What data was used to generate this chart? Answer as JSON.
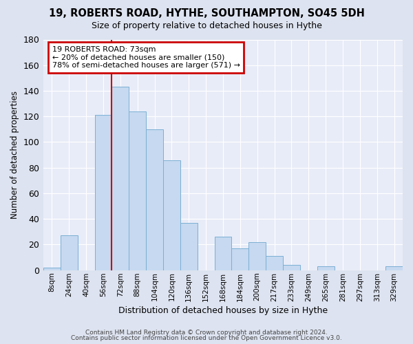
{
  "title": "19, ROBERTS ROAD, HYTHE, SOUTHAMPTON, SO45 5DH",
  "subtitle": "Size of property relative to detached houses in Hythe",
  "xlabel": "Distribution of detached houses by size in Hythe",
  "ylabel": "Number of detached properties",
  "bar_labels": [
    "8sqm",
    "24sqm",
    "40sqm",
    "56sqm",
    "72sqm",
    "88sqm",
    "104sqm",
    "120sqm",
    "136sqm",
    "152sqm",
    "168sqm",
    "184sqm",
    "200sqm",
    "217sqm",
    "233sqm",
    "249sqm",
    "265sqm",
    "281sqm",
    "297sqm",
    "313sqm",
    "329sqm"
  ],
  "bar_values": [
    2,
    27,
    0,
    121,
    143,
    124,
    110,
    86,
    37,
    0,
    26,
    17,
    22,
    11,
    4,
    0,
    3,
    0,
    0,
    0,
    3
  ],
  "bar_color": "#c6d9f0",
  "bar_edge_color": "#7bafd4",
  "highlight_bar_index": 4,
  "vline_color": "#cc0000",
  "annotation_title": "19 ROBERTS ROAD: 73sqm",
  "annotation_line1": "← 20% of detached houses are smaller (150)",
  "annotation_line2": "78% of semi-detached houses are larger (571) →",
  "annotation_box_facecolor": "#ffffff",
  "annotation_box_edgecolor": "#cc0000",
  "ylim": [
    0,
    180
  ],
  "yticks": [
    0,
    20,
    40,
    60,
    80,
    100,
    120,
    140,
    160,
    180
  ],
  "footer1": "Contains HM Land Registry data © Crown copyright and database right 2024.",
  "footer2": "Contains public sector information licensed under the Open Government Licence v3.0.",
  "bg_color": "#dde3f0",
  "plot_bg_color": "#e8ecf8"
}
